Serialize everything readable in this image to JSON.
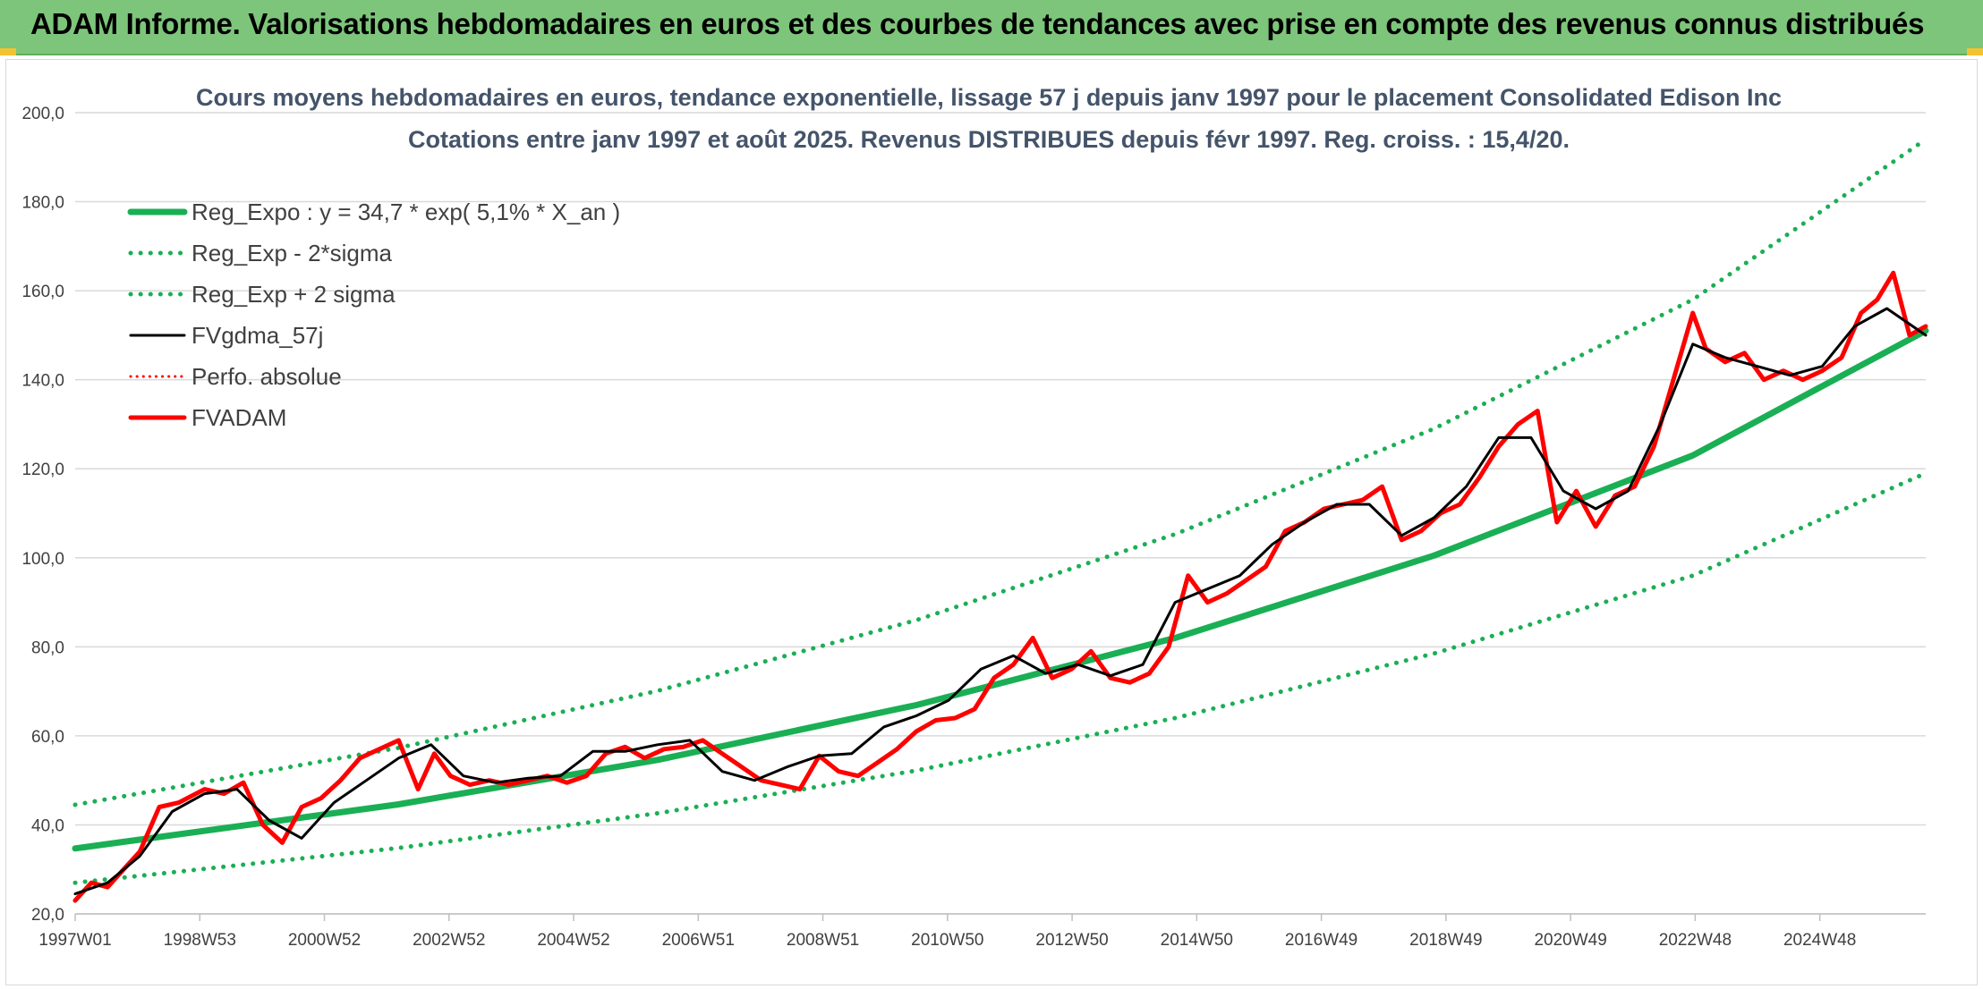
{
  "banner": {
    "title": "ADAM Informe. Valorisations hebdomadaires en euros et des courbes de tendances avec prise en compte des revenus connus distribués"
  },
  "colors": {
    "banner_bg": "#7dc57a",
    "trend_green": "#1aaf54",
    "smooth_black": "#000000",
    "adam_red": "#ff0000",
    "grid": "#d9d9d9",
    "title_text": "#44546a"
  },
  "chart_data": {
    "type": "line",
    "title": "Cours moyens hebdomadaires en euros, tendance exponentielle, lissage 57 j depuis janv 1997 pour le placement Consolidated Edison Inc",
    "subtitle": "Cotations entre janv 1997 et août 2025. Revenus DISTRIBUES depuis févr 1997. Reg. croiss. : 15,4/20.",
    "xlabel": "",
    "ylabel": "",
    "ylim": [
      20,
      200
    ],
    "xlim": [
      1997.0,
      2025.6
    ],
    "yticks": [
      "20,0",
      "40,0",
      "60,0",
      "80,0",
      "100,0",
      "120,0",
      "140,0",
      "160,0",
      "180,0",
      "200,0"
    ],
    "xtick_labels": [
      "1997W01",
      "1998W53",
      "2000W52",
      "2002W52",
      "2004W52",
      "2006W51",
      "2008W51",
      "2010W50",
      "2012W50",
      "2014W50",
      "2016W49",
      "2018W49",
      "2020W49",
      "2022W48",
      "2024W48"
    ],
    "grid": true,
    "legend_placement": "top-left",
    "legend": [
      {
        "label": "Reg_Expo : y = 34,7 * exp( 5,1% *  X_an )",
        "style": "solid",
        "color": "#1aaf54"
      },
      {
        "label": "Reg_Exp - 2*sigma",
        "style": "dotted",
        "color": "#1aaf54"
      },
      {
        "label": "Reg_Exp + 2 sigma",
        "style": "dotted",
        "color": "#1aaf54"
      },
      {
        "label": "FVgdma_57j",
        "style": "solid",
        "color": "#000000"
      },
      {
        "label": "Perfo. absolue",
        "style": "dotted",
        "color": "#ff0000"
      },
      {
        "label": "FVADAM",
        "style": "solid",
        "color": "#ff0000"
      }
    ],
    "series": [
      {
        "name": "Reg_Expo : y = 34,7 * exp( 5,1% *  X_an )",
        "x": [
          1997.0,
          2002.0,
          2006.0,
          2010.0,
          2014.0,
          2018.0,
          2022.0,
          2025.6
        ],
        "values": [
          34.7,
          44.6,
          54.6,
          66.9,
          82.0,
          100.5,
          123.0,
          151.0
        ]
      },
      {
        "name": "Reg_Exp - 2*sigma",
        "x": [
          1997.0,
          2002.0,
          2006.0,
          2010.0,
          2014.0,
          2018.0,
          2022.0,
          2025.6
        ],
        "values": [
          27.0,
          34.8,
          42.6,
          52.2,
          64.0,
          78.5,
          96.0,
          119.0
        ]
      },
      {
        "name": "Reg_Exp + 2 sigma",
        "x": [
          1997.0,
          2002.0,
          2006.0,
          2010.0,
          2014.0,
          2018.0,
          2022.0,
          2025.6
        ],
        "values": [
          44.5,
          57.3,
          70.1,
          86.0,
          105.3,
          129.0,
          158.0,
          194.0
        ]
      },
      {
        "name": "FVgdma_57j",
        "x": [
          1997.0,
          1997.5,
          1998.0,
          1998.5,
          1999.0,
          1999.5,
          2000.0,
          2000.5,
          2001.0,
          2001.5,
          2002.0,
          2002.5,
          2003.0,
          2003.5,
          2004.0,
          2004.5,
          2005.0,
          2005.5,
          2006.0,
          2006.5,
          2007.0,
          2007.5,
          2008.0,
          2008.5,
          2009.0,
          2009.5,
          2010.0,
          2010.5,
          2011.0,
          2011.5,
          2012.0,
          2012.5,
          2013.0,
          2013.5,
          2014.0,
          2014.5,
          2015.0,
          2015.5,
          2016.0,
          2016.5,
          2017.0,
          2017.5,
          2018.0,
          2018.5,
          2019.0,
          2019.5,
          2020.0,
          2020.5,
          2021.0,
          2021.5,
          2022.0,
          2022.5,
          2023.0,
          2023.5,
          2024.0,
          2024.5,
          2025.0,
          2025.6
        ],
        "values": [
          24.5,
          27.0,
          33.0,
          43.0,
          47.0,
          48.0,
          41.0,
          37.0,
          45.0,
          50.0,
          55.0,
          58.0,
          51.0,
          49.5,
          50.5,
          51.0,
          56.5,
          56.5,
          58.0,
          59.0,
          52.0,
          50.0,
          53.0,
          55.5,
          56.0,
          62.0,
          64.5,
          68.0,
          75.0,
          78.0,
          74.0,
          76.0,
          73.5,
          76.0,
          90.0,
          93.0,
          96.0,
          103.0,
          108.0,
          112.0,
          112.0,
          105.0,
          109.0,
          116.0,
          127.0,
          127.0,
          115.0,
          111.0,
          115.0,
          130.0,
          148.0,
          145.0,
          143.0,
          141.0,
          143.0,
          152.0,
          156.0,
          150.0
        ]
      },
      {
        "name": "FVADAM",
        "x": [
          1997.0,
          1997.25,
          1997.5,
          1997.75,
          1998.0,
          1998.3,
          1998.6,
          1999.0,
          1999.3,
          1999.6,
          1999.9,
          2000.2,
          2000.5,
          2000.8,
          2001.1,
          2001.4,
          2001.7,
          2002.0,
          2002.3,
          2002.55,
          2002.8,
          2003.1,
          2003.4,
          2003.7,
          2004.0,
          2004.3,
          2004.6,
          2004.9,
          2005.2,
          2005.5,
          2005.8,
          2006.1,
          2006.4,
          2006.7,
          2007.0,
          2007.3,
          2007.6,
          2007.9,
          2008.2,
          2008.5,
          2008.8,
          2009.1,
          2009.4,
          2009.7,
          2010.0,
          2010.3,
          2010.6,
          2010.9,
          2011.2,
          2011.5,
          2011.8,
          2012.1,
          2012.4,
          2012.7,
          2013.0,
          2013.3,
          2013.6,
          2013.9,
          2014.2,
          2014.5,
          2014.8,
          2015.1,
          2015.4,
          2015.7,
          2016.0,
          2016.3,
          2016.6,
          2016.9,
          2017.2,
          2017.5,
          2017.8,
          2018.1,
          2018.4,
          2018.7,
          2019.0,
          2019.3,
          2019.6,
          2019.9,
          2020.2,
          2020.5,
          2020.8,
          2021.1,
          2021.4,
          2021.7,
          2022.0,
          2022.2,
          2022.5,
          2022.8,
          2023.1,
          2023.4,
          2023.7,
          2024.0,
          2024.3,
          2024.6,
          2024.85,
          2025.1,
          2025.35,
          2025.6
        ],
        "values": [
          23.0,
          27.0,
          26.0,
          30.0,
          34.0,
          44.0,
          45.0,
          48.0,
          47.0,
          49.5,
          40.0,
          36.0,
          44.0,
          46.0,
          50.0,
          55.0,
          57.0,
          59.0,
          48.0,
          56.0,
          51.0,
          49.0,
          50.0,
          49.0,
          50.0,
          51.0,
          49.5,
          51.0,
          56.0,
          57.5,
          55.0,
          57.0,
          57.5,
          59.0,
          56.0,
          53.0,
          50.0,
          49.0,
          48.0,
          55.5,
          52.0,
          51.0,
          54.0,
          57.0,
          61.0,
          63.5,
          64.0,
          66.0,
          73.0,
          76.0,
          82.0,
          73.0,
          75.0,
          79.0,
          73.0,
          72.0,
          74.0,
          80.0,
          96.0,
          90.0,
          92.0,
          95.0,
          98.0,
          106.0,
          108.0,
          111.0,
          112.0,
          113.0,
          116.0,
          104.0,
          106.0,
          110.0,
          112.0,
          118.0,
          125.0,
          130.0,
          133.0,
          108.0,
          115.0,
          107.0,
          114.0,
          116.0,
          125.0,
          140.0,
          155.0,
          147.0,
          144.0,
          146.0,
          140.0,
          142.0,
          140.0,
          142.0,
          145.0,
          155.0,
          158.0,
          164.0,
          150.0,
          152.0
        ]
      }
    ]
  }
}
